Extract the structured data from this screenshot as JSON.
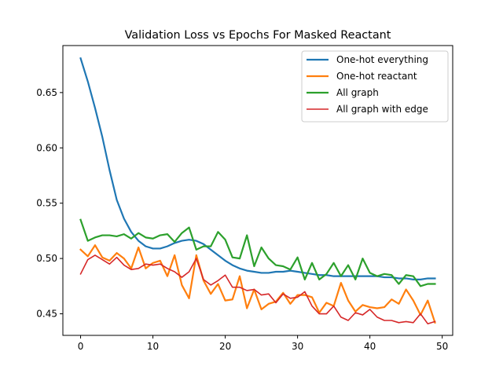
{
  "chart_data": {
    "type": "line",
    "title": "Validation Loss vs Epochs For Masked Reactant",
    "xlabel": "",
    "ylabel": "",
    "xlim": [
      -2.45,
      51.45
    ],
    "ylim": [
      0.4305,
      0.6925
    ],
    "xticks": [
      0,
      10,
      20,
      30,
      40,
      50
    ],
    "yticks": [
      0.45,
      0.5,
      0.55,
      0.6,
      0.65
    ],
    "grid": false,
    "legend_position": "top-right",
    "series": [
      {
        "name": "One-hot everything",
        "color": "#1f77b4",
        "x": [
          0,
          1,
          2,
          3,
          4,
          5,
          6,
          7,
          8,
          9,
          10,
          11,
          12,
          13,
          14,
          15,
          16,
          17,
          18,
          19,
          20,
          21,
          22,
          23,
          24,
          25,
          26,
          27,
          28,
          29,
          30,
          31,
          32,
          33,
          34,
          35,
          36,
          37,
          38,
          39,
          40,
          41,
          42,
          43,
          44,
          45,
          46,
          47,
          48,
          49
        ],
        "values": [
          0.681,
          0.66,
          0.636,
          0.61,
          0.58,
          0.553,
          0.536,
          0.524,
          0.516,
          0.511,
          0.509,
          0.509,
          0.511,
          0.514,
          0.516,
          0.517,
          0.516,
          0.513,
          0.508,
          0.503,
          0.498,
          0.494,
          0.491,
          0.489,
          0.488,
          0.487,
          0.487,
          0.488,
          0.488,
          0.489,
          0.488,
          0.487,
          0.486,
          0.485,
          0.485,
          0.484,
          0.484,
          0.484,
          0.484,
          0.484,
          0.484,
          0.484,
          0.483,
          0.483,
          0.482,
          0.482,
          0.481,
          0.481,
          0.482,
          0.482
        ]
      },
      {
        "name": "One-hot reactant",
        "color": "#ff7f0e",
        "x": [
          0,
          1,
          2,
          3,
          4,
          5,
          6,
          7,
          8,
          9,
          10,
          11,
          12,
          13,
          14,
          15,
          16,
          17,
          18,
          19,
          20,
          21,
          22,
          23,
          24,
          25,
          26,
          27,
          28,
          29,
          30,
          31,
          32,
          33,
          34,
          35,
          36,
          37,
          38,
          39,
          40,
          41,
          42,
          43,
          44,
          45,
          46,
          47,
          48,
          49
        ],
        "values": [
          0.508,
          0.502,
          0.512,
          0.501,
          0.498,
          0.505,
          0.5,
          0.491,
          0.51,
          0.491,
          0.496,
          0.498,
          0.484,
          0.503,
          0.476,
          0.464,
          0.503,
          0.48,
          0.468,
          0.477,
          0.462,
          0.463,
          0.484,
          0.455,
          0.472,
          0.454,
          0.459,
          0.461,
          0.469,
          0.459,
          0.467,
          0.467,
          0.465,
          0.451,
          0.46,
          0.457,
          0.478,
          0.462,
          0.452,
          0.458,
          0.456,
          0.455,
          0.456,
          0.463,
          0.459,
          0.472,
          0.462,
          0.449,
          0.462,
          0.442
        ]
      },
      {
        "name": "All graph",
        "color": "#2ca02c",
        "x": [
          0,
          1,
          2,
          3,
          4,
          5,
          6,
          7,
          8,
          9,
          10,
          11,
          12,
          13,
          14,
          15,
          16,
          17,
          18,
          19,
          20,
          21,
          22,
          23,
          24,
          25,
          26,
          27,
          28,
          29,
          30,
          31,
          32,
          33,
          34,
          35,
          36,
          37,
          38,
          39,
          40,
          41,
          42,
          43,
          44,
          45,
          46,
          47,
          48,
          49
        ],
        "values": [
          0.535,
          0.516,
          0.519,
          0.521,
          0.521,
          0.52,
          0.522,
          0.518,
          0.523,
          0.519,
          0.518,
          0.521,
          0.522,
          0.515,
          0.523,
          0.528,
          0.508,
          0.511,
          0.511,
          0.524,
          0.517,
          0.501,
          0.5,
          0.521,
          0.493,
          0.51,
          0.5,
          0.494,
          0.493,
          0.49,
          0.501,
          0.481,
          0.496,
          0.481,
          0.486,
          0.496,
          0.484,
          0.494,
          0.481,
          0.5,
          0.487,
          0.484,
          0.486,
          0.485,
          0.477,
          0.485,
          0.484,
          0.475,
          0.477,
          0.477
        ]
      },
      {
        "name": "All graph with edge",
        "color": "#d62728",
        "x": [
          0,
          1,
          2,
          3,
          4,
          5,
          6,
          7,
          8,
          9,
          10,
          11,
          12,
          13,
          14,
          15,
          16,
          17,
          18,
          19,
          20,
          21,
          22,
          23,
          24,
          25,
          26,
          27,
          28,
          29,
          30,
          31,
          32,
          33,
          34,
          35,
          36,
          37,
          38,
          39,
          40,
          41,
          42,
          43,
          44,
          45,
          46,
          47,
          48,
          49
        ],
        "values": [
          0.486,
          0.499,
          0.503,
          0.499,
          0.495,
          0.501,
          0.494,
          0.49,
          0.491,
          0.495,
          0.494,
          0.495,
          0.491,
          0.488,
          0.483,
          0.488,
          0.5,
          0.481,
          0.476,
          0.48,
          0.485,
          0.474,
          0.474,
          0.471,
          0.472,
          0.467,
          0.468,
          0.46,
          0.468,
          0.464,
          0.465,
          0.47,
          0.457,
          0.45,
          0.45,
          0.457,
          0.447,
          0.444,
          0.451,
          0.449,
          0.454,
          0.447,
          0.444,
          0.444,
          0.442,
          0.443,
          0.442,
          0.45,
          0.441,
          0.443
        ]
      }
    ]
  }
}
